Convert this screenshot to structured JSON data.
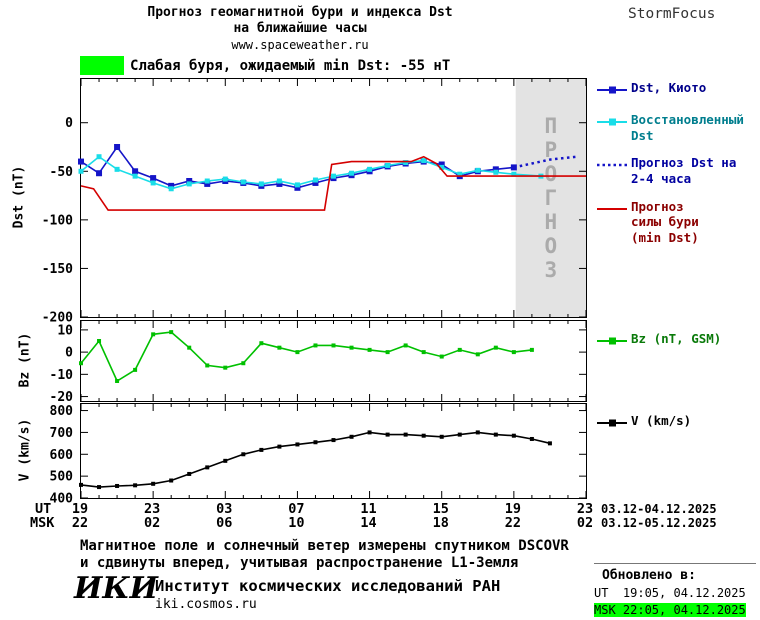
{
  "header": {
    "title_line1": "Прогноз геомагнитной бури и индекса Dst",
    "title_line2": "на ближайшие часы",
    "site_url": "www.spaceweather.ru",
    "brand": "StormFocus"
  },
  "storm_banner": {
    "label": "Слабая буря, ожидаемый min Dst: -55 нТ",
    "severity_color": "#00ff00"
  },
  "axes": {
    "ut_label": "UT",
    "msk_label": "MSK",
    "ut_ticks": [
      "19",
      "23",
      "03",
      "07",
      "11",
      "15",
      "19",
      "23"
    ],
    "msk_ticks": [
      "22",
      "02",
      "06",
      "10",
      "14",
      "18",
      "22",
      "02"
    ],
    "ut_date_range": "03.12-04.12.2025",
    "msk_date_range": "03.12-05.12.2025"
  },
  "chart_data": [
    {
      "type": "line",
      "ylabel": "Dst (nT)",
      "ylim": [
        -200,
        45
      ],
      "yticks": [
        0,
        -50,
        -100,
        -150,
        -200
      ],
      "xlim": [
        0,
        28
      ],
      "xticks": [
        0,
        4,
        8,
        12,
        16,
        20,
        24,
        28
      ],
      "x_axis_hours_ut": [
        "19",
        "23",
        "03",
        "07",
        "11",
        "15",
        "19",
        "23"
      ],
      "forecast_band": [
        24.1,
        28
      ],
      "band_label": "ПРОГНОЗ",
      "series": [
        {
          "name": "Dst, Киото",
          "color": "#1515c8",
          "marker": true,
          "marker_size": 6,
          "x": [
            0,
            1,
            2,
            3,
            4,
            5,
            6,
            7,
            8,
            9,
            10,
            11,
            12,
            13,
            14,
            15,
            16,
            17,
            18,
            19,
            20,
            21,
            22,
            23,
            24
          ],
          "y": [
            -40,
            -52,
            -25,
            -50,
            -57,
            -65,
            -60,
            -63,
            -60,
            -62,
            -65,
            -63,
            -67,
            -62,
            -57,
            -54,
            -50,
            -45,
            -42,
            -40,
            -43,
            -55,
            -50,
            -48,
            -46
          ]
        },
        {
          "name": "Восстановленный Dst",
          "color": "#19dde8",
          "marker": true,
          "marker_size": 5,
          "x": [
            0,
            1,
            2,
            3,
            4,
            5,
            6,
            7,
            8,
            9,
            10,
            11,
            12,
            13,
            14,
            15,
            16,
            17,
            18,
            19,
            20,
            21,
            22,
            23,
            24,
            25.5
          ],
          "y": [
            -50,
            -35,
            -48,
            -55,
            -62,
            -68,
            -63,
            -60,
            -58,
            -61,
            -63,
            -60,
            -64,
            -59,
            -55,
            -52,
            -48,
            -44,
            -41,
            -39,
            -46,
            -53,
            -49,
            -51,
            -53,
            -55
          ]
        },
        {
          "name": "Прогноз Dst на 2-4 часа",
          "color": "#1515c8",
          "dashed": true,
          "width": 2.5,
          "x": [
            24,
            25,
            26,
            27.5
          ],
          "y": [
            -46,
            -42,
            -38,
            -35
          ]
        },
        {
          "name": "Прогноз силы бури (min Dst)",
          "color": "#d40000",
          "x": [
            0,
            0.7,
            1.5,
            13.5,
            13.9,
            15,
            18.3,
            19,
            19.7,
            20.3,
            28
          ],
          "y": [
            -65,
            -68,
            -90,
            -90,
            -43,
            -40,
            -40,
            -35,
            -42,
            -55,
            -55
          ]
        }
      ]
    },
    {
      "type": "line",
      "ylabel": "Bz (nT)",
      "ylim": [
        -22,
        14
      ],
      "yticks": [
        10,
        0,
        -10,
        -20
      ],
      "xlim": [
        0,
        28
      ],
      "xticks": [
        0,
        4,
        8,
        12,
        16,
        20,
        24,
        28
      ],
      "series": [
        {
          "name": "Bz (nT, GSM)",
          "color": "#00c000",
          "marker": true,
          "marker_size": 4,
          "x": [
            0,
            1,
            2,
            3,
            4,
            5,
            6,
            7,
            8,
            9,
            10,
            11,
            12,
            13,
            14,
            15,
            16,
            17,
            18,
            19,
            20,
            21,
            22,
            23,
            24,
            25
          ],
          "y": [
            -5,
            5,
            -13,
            -8,
            8,
            9,
            2,
            -6,
            -7,
            -5,
            4,
            2,
            0,
            3,
            3,
            2,
            1,
            0,
            3,
            0,
            -2,
            1,
            -1,
            2,
            0,
            1
          ]
        }
      ]
    },
    {
      "type": "line",
      "ylabel": "V (km/s)",
      "ylim": [
        400,
        830
      ],
      "yticks": [
        800,
        700,
        600,
        500,
        400
      ],
      "xlim": [
        0,
        28
      ],
      "xticks": [
        0,
        4,
        8,
        12,
        16,
        20,
        24,
        28
      ],
      "series": [
        {
          "name": "V (km/s)",
          "color": "#000000",
          "marker": true,
          "marker_size": 4,
          "x": [
            0,
            1,
            2,
            3,
            4,
            5,
            6,
            7,
            8,
            9,
            10,
            11,
            12,
            13,
            14,
            15,
            16,
            17,
            18,
            19,
            20,
            21,
            22,
            23,
            24,
            25,
            26
          ],
          "y": [
            460,
            450,
            455,
            458,
            465,
            480,
            510,
            540,
            570,
            600,
            620,
            635,
            645,
            655,
            665,
            680,
            700,
            690,
            690,
            685,
            680,
            690,
            700,
            690,
            685,
            670,
            650
          ]
        }
      ]
    }
  ],
  "footer": {
    "note_line1": "Магнитное поле и солнечный ветер измерены спутником DSCOVR",
    "note_line2": "и сдвинуты вперед, учитывая распространение L1-Земля",
    "logo_text": "ИКИ",
    "institute": "Институт космических исследований РАН",
    "institute_url": "iki.cosmos.ru"
  },
  "updated": {
    "label": "Обновлено в:",
    "ut_time": "UT  19:05, 04.12.2025",
    "msk_time": "MSK 22:05, 04.12.2025",
    "highlight_color": "#00ff00"
  }
}
